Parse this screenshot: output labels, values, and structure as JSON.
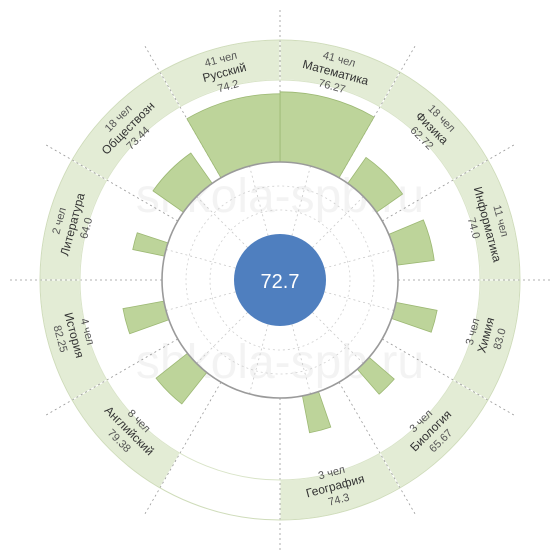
{
  "chart_data": {
    "type": "radial-bar",
    "center_value": "72.7",
    "watermark": "shkola-spb.ru",
    "count_suffix": "чел",
    "series_scale": [
      0,
      100
    ],
    "subjects": [
      {
        "name": "Математика",
        "count": 41,
        "score": "76.27",
        "students": 41
      },
      {
        "name": "Физика",
        "count": 18,
        "score": "62.72",
        "students": 18
      },
      {
        "name": "Информатика",
        "count": 11,
        "score": "74.0",
        "students": 11
      },
      {
        "name": "Химия",
        "count": 3,
        "score": "83.0",
        "students": 3
      },
      {
        "name": "Биология",
        "count": 3,
        "score": "65.67",
        "students": 3
      },
      {
        "name": "География",
        "count": 3,
        "score": "74.3",
        "students": 3
      },
      {
        "name": "",
        "count": null,
        "score": "",
        "students": 0
      },
      {
        "name": "Английский",
        "count": 8,
        "score": "79.38",
        "students": 8
      },
      {
        "name": "История",
        "count": 4,
        "score": "82.25",
        "students": 4
      },
      {
        "name": "Литература",
        "count": 2,
        "score": "64.0",
        "students": 2
      },
      {
        "name": "Обществозн",
        "count": 18,
        "score": "73.44",
        "students": 18
      },
      {
        "name": "Русский",
        "count": 41,
        "score": "74.2",
        "students": 41
      }
    ],
    "colors": {
      "band": "#e3ecd5",
      "band_stroke": "#cfdcba",
      "bar": "#bdd49a",
      "bar_stroke": "#9cb873",
      "center": "#4f7fbf",
      "center_text": "#ffffff",
      "ring": "#9a9a9a"
    }
  }
}
